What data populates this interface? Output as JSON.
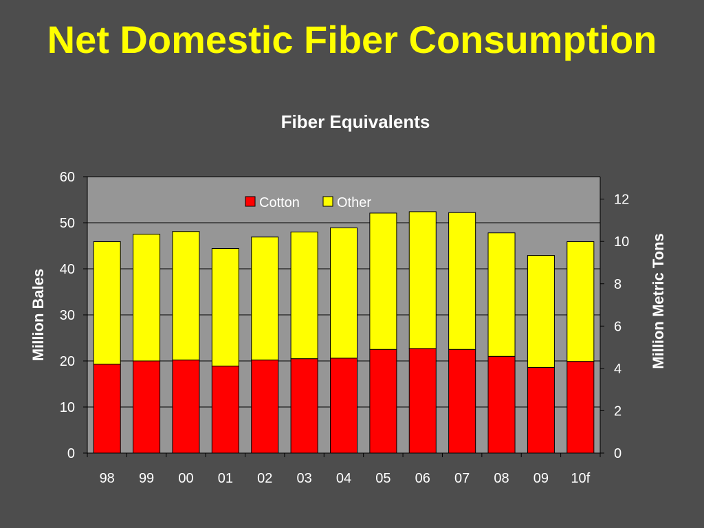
{
  "slide": {
    "title": "Net Domestic Fiber Consumption"
  },
  "colors": {
    "background": "#4d4d4d",
    "plot_area": "#969696",
    "title": "#ffff00",
    "text": "#ffffff",
    "cotton": "#ff0000",
    "other": "#ffff00"
  },
  "chart_data": {
    "type": "bar",
    "stacked": true,
    "title": "Fiber Equivalents",
    "ylabel": "Million Bales",
    "y2label": "Million Metric Tons",
    "categories": [
      "98",
      "99",
      "00",
      "01",
      "02",
      "03",
      "04",
      "05",
      "06",
      "07",
      "08",
      "09",
      "10f"
    ],
    "series": [
      {
        "name": "Cotton",
        "color": "#ff0000",
        "values": [
          19.3,
          20.0,
          20.2,
          18.9,
          20.2,
          20.5,
          20.6,
          22.5,
          22.7,
          22.5,
          21.0,
          18.6,
          19.9
        ]
      },
      {
        "name": "Other",
        "color": "#ffff00",
        "values": [
          26.6,
          27.5,
          27.9,
          25.5,
          26.7,
          27.5,
          28.3,
          29.6,
          29.7,
          29.7,
          26.8,
          24.3,
          26.0
        ]
      }
    ],
    "ylim": [
      0,
      60
    ],
    "yticks": [
      "0",
      "10",
      "20",
      "30",
      "40",
      "50",
      "60"
    ],
    "y2lim": [
      0,
      13.06
    ],
    "y2ticks": [
      "0",
      "2",
      "4",
      "6",
      "8",
      "10",
      "12"
    ],
    "gridlines": true,
    "legend": "top-center"
  }
}
